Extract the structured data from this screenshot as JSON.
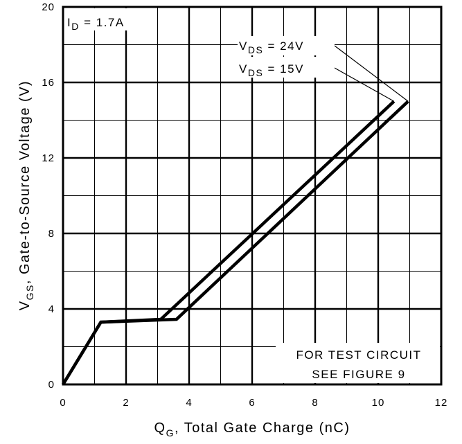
{
  "chart_data": {
    "type": "line",
    "xlabel": {
      "main": "Q",
      "sub": "G",
      "rest": ", Total Gate Charge (nC)"
    },
    "ylabel": {
      "main": "V",
      "sub": "GS",
      "rest": ", Gate-to-Source Voltage (V)"
    },
    "xlim": [
      0,
      12
    ],
    "ylim": [
      0,
      20
    ],
    "xticks": [
      0,
      2,
      4,
      6,
      8,
      10,
      12
    ],
    "yticks": [
      0,
      4,
      8,
      12,
      16,
      20
    ],
    "x_minor_step": 1,
    "y_minor_step": 2,
    "grid": true,
    "condition": {
      "main": "I",
      "sub": "D",
      "rest": " = 1.7A"
    },
    "note": [
      "FOR TEST CIRCUIT",
      "SEE FIGURE 9"
    ],
    "series": [
      {
        "label": {
          "main": "V",
          "sub": "DS",
          "rest": " = 24V"
        },
        "points": [
          [
            0,
            0
          ],
          [
            1.2,
            3.3
          ],
          [
            3.6,
            3.45
          ],
          [
            10.95,
            15.0
          ]
        ]
      },
      {
        "label": {
          "main": "V",
          "sub": "DS",
          "rest": " = 15V"
        },
        "points": [
          [
            0,
            0
          ],
          [
            1.2,
            3.3
          ],
          [
            3.1,
            3.45
          ],
          [
            10.5,
            15.0
          ]
        ]
      }
    ],
    "line_color": "#000000"
  }
}
